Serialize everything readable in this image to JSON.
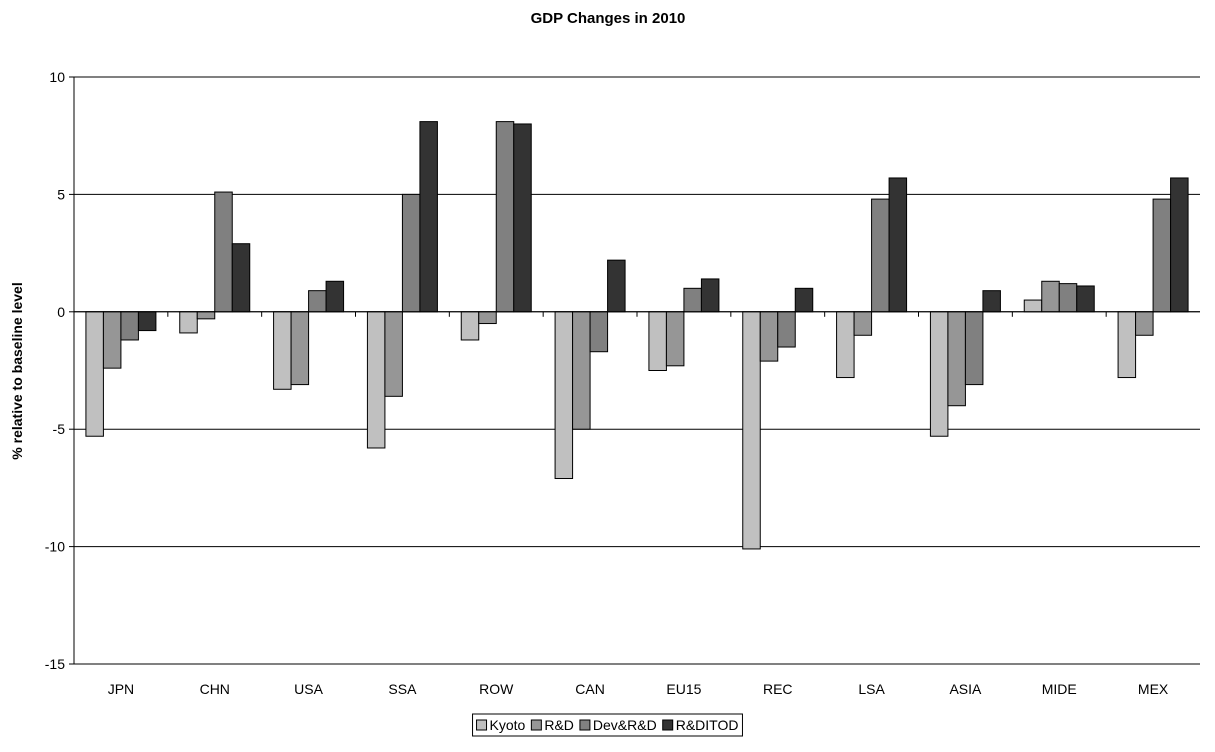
{
  "chart_data": {
    "type": "bar",
    "title": "GDP Changes in 2010",
    "xlabel": "",
    "ylabel": "% relative to baseline level",
    "ylim": [
      -15,
      10
    ],
    "yticks": [
      10,
      5,
      0,
      -5,
      -10,
      -15
    ],
    "grid": true,
    "legend_position": "bottom",
    "categories": [
      "JPN",
      "CHN",
      "USA",
      "SSA",
      "ROW",
      "CAN",
      "EU15",
      "REC",
      "LSA",
      "ASIA",
      "MIDE",
      "MEX"
    ],
    "series": [
      {
        "name": "Kyoto",
        "color": "#c0c0c0",
        "values": [
          -5.3,
          -0.9,
          -3.3,
          -5.8,
          -1.2,
          -7.1,
          -2.5,
          -10.1,
          -2.8,
          -5.3,
          0.5,
          -2.8
        ]
      },
      {
        "name": "R&D",
        "color": "#969696",
        "values": [
          -2.4,
          -0.3,
          -3.1,
          -3.6,
          -0.5,
          -5.0,
          -2.3,
          -2.1,
          -1.0,
          -4.0,
          1.3,
          -1.0
        ]
      },
      {
        "name": "Dev&R&D",
        "color": "#808080",
        "values": [
          -1.2,
          5.1,
          0.9,
          5.0,
          8.1,
          -1.7,
          1.0,
          -1.5,
          4.8,
          -3.1,
          1.2,
          4.8
        ]
      },
      {
        "name": "R&DITOD",
        "color": "#333333",
        "values": [
          -0.8,
          2.9,
          1.3,
          8.1,
          8.0,
          2.2,
          1.4,
          1.0,
          5.7,
          0.9,
          1.1,
          5.7
        ]
      }
    ]
  }
}
